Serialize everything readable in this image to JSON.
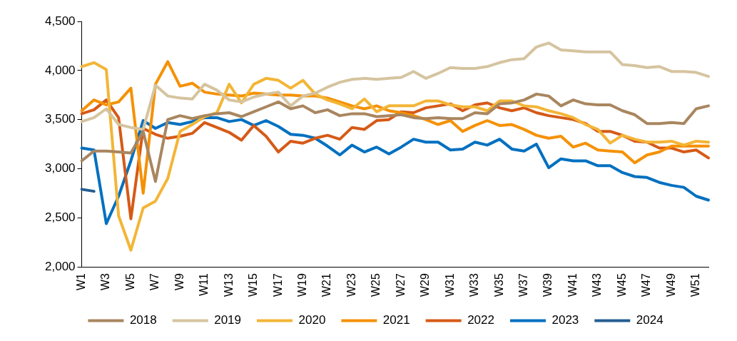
{
  "chart_data": {
    "type": "line",
    "categories": [
      "W1",
      null,
      "W3",
      null,
      "W5",
      null,
      "W7",
      null,
      "W9",
      null,
      "W11",
      null,
      "W13",
      null,
      "W15",
      null,
      "W17",
      null,
      "W19",
      null,
      "W21",
      null,
      "W23",
      null,
      "W25",
      null,
      "W27",
      null,
      "W29",
      null,
      "W31",
      null,
      "W33",
      null,
      "W35",
      null,
      "W37",
      null,
      "W39",
      null,
      "W41",
      null,
      "W43",
      null,
      "W45",
      null,
      "W47",
      null,
      "W49",
      null,
      "W51",
      null
    ],
    "ylim": [
      2000,
      4500
    ],
    "yticks": [
      {
        "value": 2000,
        "label": "2,000"
      },
      {
        "value": 2500,
        "label": "2,500"
      },
      {
        "value": 3000,
        "label": "3,000"
      },
      {
        "value": 3500,
        "label": "3,500"
      },
      {
        "value": 4000,
        "label": "4,000"
      },
      {
        "value": 4500,
        "label": "4,500"
      }
    ],
    "grid": false,
    "legend": "bottom",
    "marker": "none",
    "line_style": "solid",
    "series": [
      {
        "name": "2018",
        "color": "#a9865f",
        "values": [
          3080,
          3180,
          3180,
          3170,
          3160,
          3380,
          2870,
          3500,
          3540,
          3510,
          3540,
          3560,
          3570,
          3530,
          3580,
          3630,
          3680,
          3610,
          3640,
          3570,
          3600,
          3540,
          3560,
          3560,
          3530,
          3540,
          3550,
          3520,
          3510,
          3520,
          3510,
          3510,
          3570,
          3560,
          3660,
          3670,
          3700,
          3760,
          3740,
          3640,
          3700,
          3660,
          3650,
          3650,
          3590,
          3550,
          3460,
          3460,
          3470,
          3460,
          3610,
          3640
        ]
      },
      {
        "name": "2019",
        "color": "#d5c49f",
        "values": [
          3480,
          3520,
          3610,
          3450,
          3420,
          3400,
          3850,
          3740,
          3720,
          3710,
          3860,
          3800,
          3700,
          3680,
          3730,
          3760,
          3780,
          3640,
          3740,
          3770,
          3830,
          3880,
          3910,
          3920,
          3910,
          3920,
          3930,
          3990,
          3920,
          3970,
          4030,
          4020,
          4020,
          4040,
          4080,
          4110,
          4120,
          4240,
          4280,
          4210,
          4200,
          4190,
          4190,
          4190,
          4060,
          4050,
          4030,
          4040,
          3990,
          3990,
          3980,
          3940
        ]
      },
      {
        "name": "2020",
        "color": "#f3b536",
        "values": [
          4040,
          4080,
          4010,
          2520,
          2170,
          2600,
          2670,
          2900,
          3380,
          3450,
          3530,
          3570,
          3860,
          3670,
          3860,
          3920,
          3900,
          3820,
          3900,
          3760,
          3700,
          3660,
          3610,
          3710,
          3580,
          3640,
          3640,
          3640,
          3690,
          3690,
          3650,
          3630,
          3630,
          3590,
          3690,
          3690,
          3640,
          3630,
          3590,
          3560,
          3520,
          3450,
          3400,
          3260,
          3340,
          3300,
          3270,
          3270,
          3280,
          3240,
          3280,
          3270
        ]
      },
      {
        "name": "2021",
        "color": "#f59105",
        "values": [
          3590,
          3700,
          3650,
          3680,
          3820,
          2750,
          3860,
          4090,
          3840,
          3870,
          3780,
          3760,
          3750,
          3740,
          3770,
          3760,
          3750,
          3750,
          3740,
          3740,
          3720,
          3680,
          3640,
          3610,
          3640,
          3590,
          3570,
          3540,
          3500,
          3450,
          3490,
          3380,
          3440,
          3490,
          3440,
          3450,
          3400,
          3340,
          3310,
          3330,
          3220,
          3260,
          3190,
          3180,
          3170,
          3060,
          3140,
          3170,
          3230,
          3230,
          3230,
          3230
        ]
      },
      {
        "name": "2022",
        "color": "#d65a17",
        "values": [
          3560,
          3600,
          3700,
          3520,
          2490,
          3410,
          3350,
          3310,
          3330,
          3360,
          3470,
          3420,
          3370,
          3290,
          3440,
          3330,
          3170,
          3280,
          3260,
          3310,
          3340,
          3300,
          3420,
          3400,
          3490,
          3500,
          3580,
          3570,
          3620,
          3640,
          3660,
          3590,
          3650,
          3670,
          3620,
          3590,
          3620,
          3570,
          3540,
          3520,
          3500,
          3460,
          3380,
          3380,
          3340,
          3280,
          3270,
          3210,
          3210,
          3170,
          3190,
          3110
        ]
      },
      {
        "name": "2023",
        "color": "#0070c0",
        "values": [
          3210,
          3190,
          2440,
          2720,
          3080,
          3490,
          3410,
          3470,
          3450,
          3480,
          3520,
          3520,
          3480,
          3500,
          3440,
          3490,
          3430,
          3350,
          3340,
          3310,
          3230,
          3140,
          3240,
          3170,
          3220,
          3150,
          3220,
          3300,
          3270,
          3270,
          3190,
          3200,
          3270,
          3240,
          3300,
          3200,
          3180,
          3250,
          3010,
          3100,
          3080,
          3080,
          3030,
          3030,
          2960,
          2920,
          2910,
          2860,
          2830,
          2810,
          2720,
          2680
        ]
      },
      {
        "name": "2024",
        "color": "#255e91",
        "values": [
          2790,
          2770,
          null,
          null,
          null,
          null,
          null,
          null,
          null,
          null,
          null,
          null,
          null,
          null,
          null,
          null,
          null,
          null,
          null,
          null,
          null,
          null,
          null,
          null,
          null,
          null,
          null,
          null,
          null,
          null,
          null,
          null,
          null,
          null,
          null,
          null,
          null,
          null,
          null,
          null,
          null,
          null,
          null,
          null,
          null,
          null,
          null,
          null,
          null,
          null,
          null,
          null
        ]
      }
    ]
  }
}
